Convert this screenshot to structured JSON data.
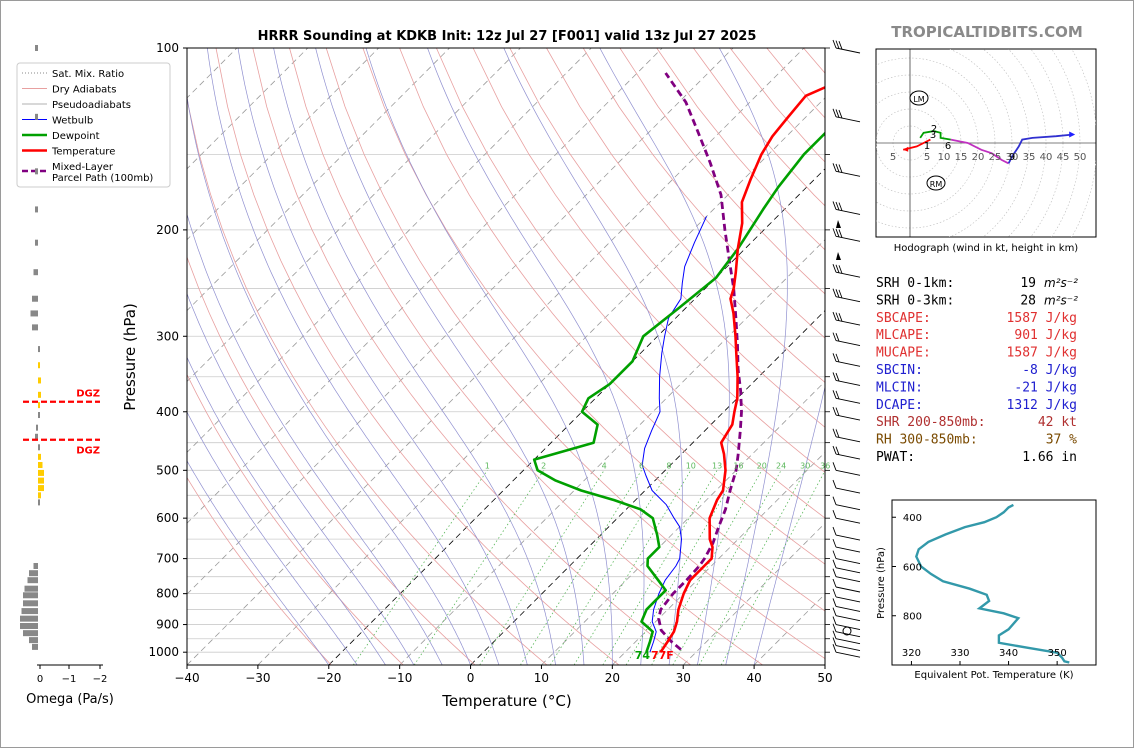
{
  "colors": {
    "temperature": "#ff0000",
    "dewpoint": "#00a000",
    "wetbulb": "#0000ff",
    "parcel": "#800080",
    "dry_adiabat": "#e8a0a0",
    "pseudoadiabat": "#b0b0b0",
    "mixing_ratio": "#5cb85c",
    "hodo_0_1": "#ff0000",
    "hodo_1_3": "#00a000",
    "hodo_3_6": "#c030c0",
    "hodo_6_9": "#3030d0",
    "hodo_9_plus": "#2020ff",
    "theta_e": "#3399aa",
    "omega_up": "#888888",
    "omega_down": "#ffcc00",
    "dgz": "#ff0000",
    "red_text": "#e03030",
    "blue_text": "#2020d0",
    "brown_text": "#7a4a00",
    "dark_red_text": "#b03030"
  },
  "header": {
    "title": "HRRR Sounding at KDKB Init: 12z Jul 27 [F001] valid 13z Jul 27 2025",
    "watermark": "TROPICALTIDBITS.COM"
  },
  "legend": {
    "items": [
      {
        "label": "Sat. Mix. Ratio",
        "icon": "dotted-line"
      },
      {
        "label": "Dry Adiabats",
        "icon": "thin-red-line"
      },
      {
        "label": "Pseudoadiabats",
        "icon": "thin-gray-line"
      },
      {
        "label": "Wetbulb",
        "icon": "blue-line"
      },
      {
        "label": "Dewpoint",
        "icon": "green-line"
      },
      {
        "label": "Temperature",
        "icon": "red-line"
      },
      {
        "label": "Mixed-Layer",
        "label2": "Parcel Path (100mb)",
        "icon": "purple-dashed-line"
      }
    ]
  },
  "omega": {
    "xlabel": "Omega (Pa/s)",
    "ticks": [
      "0",
      "−1",
      "−2"
    ],
    "dgz_label": "DGZ"
  },
  "surface_labels": {
    "dewpoint": "74",
    "temperature": "77F"
  },
  "hodograph": {
    "caption": "Hodograph (wind in kt, height in km)",
    "rings": [
      "5",
      "5",
      "10",
      "15",
      "20",
      "25",
      "30",
      "35",
      "40",
      "45",
      "50"
    ],
    "lm": "LM",
    "rm": "RM",
    "height_labels": [
      "1",
      "2",
      "3",
      "6",
      "9"
    ]
  },
  "indices": [
    {
      "label": "SRH 0-1km:",
      "value": "19",
      "unit": "m²s⁻²",
      "color": "#000000"
    },
    {
      "label": "SRH 0-3km:",
      "value": "28",
      "unit": "m²s⁻²",
      "color": "#000000"
    },
    {
      "label": "SBCAPE:",
      "value": "1587 J/kg",
      "unit": "",
      "color": "#e03030"
    },
    {
      "label": "MLCAPE:",
      "value": "901 J/kg",
      "unit": "",
      "color": "#e03030"
    },
    {
      "label": "MUCAPE:",
      "value": "1587 J/kg",
      "unit": "",
      "color": "#e03030"
    },
    {
      "label": "SBCIN:",
      "value": "-8 J/kg",
      "unit": "",
      "color": "#2020d0"
    },
    {
      "label": "MLCIN:",
      "value": "-21 J/kg",
      "unit": "",
      "color": "#2020d0"
    },
    {
      "label": "DCAPE:",
      "value": "1312 J/kg",
      "unit": "",
      "color": "#2020d0"
    },
    {
      "label": "SHR 200-850mb:",
      "value": "42 kt",
      "unit": "",
      "color": "#b03030"
    },
    {
      "label": "RH 300-850mb:",
      "value": "37 %",
      "unit": "",
      "color": "#7a4a00"
    },
    {
      "label": "PWAT:",
      "value": "1.66 in",
      "unit": "",
      "color": "#000000"
    }
  ],
  "chart_data": [
    {
      "type": "line",
      "name": "skewt",
      "xlabel": "Temperature (°C)",
      "ylabel": "Pressure (hPa)",
      "xlim": [
        -40,
        50
      ],
      "ylim": [
        1050,
        100
      ],
      "y_scale": "log",
      "x_ticks": [
        -40,
        -30,
        -20,
        -10,
        0,
        10,
        20,
        30,
        40,
        50
      ],
      "x_tick_labels": [
        "−40",
        "−30",
        "−20",
        "−10",
        "0",
        "10",
        "20",
        "30",
        "40",
        "50"
      ],
      "y_ticks": [
        100,
        200,
        300,
        400,
        500,
        600,
        700,
        800,
        900,
        1000
      ],
      "mixing_ratio_labels": [
        "1",
        "2",
        "4",
        "6",
        "8",
        "10",
        "13",
        "16",
        "20",
        "24",
        "30",
        "36"
      ],
      "series": [
        {
          "key": "temperature",
          "points": [
            [
              25,
              1000
            ],
            [
              24.5,
              960
            ],
            [
              24,
              925
            ],
            [
              23,
              890
            ],
            [
              21.5,
              850
            ],
            [
              20,
              800
            ],
            [
              19,
              760
            ],
            [
              19,
              720
            ],
            [
              19,
              700
            ],
            [
              17.5,
              670
            ],
            [
              16,
              650
            ],
            [
              13,
              600
            ],
            [
              11.5,
              560
            ],
            [
              11,
              540
            ],
            [
              8.5,
              500
            ],
            [
              6,
              470
            ],
            [
              4,
              450
            ],
            [
              3,
              420
            ],
            [
              1.5,
              400
            ],
            [
              0,
              380
            ],
            [
              -3,
              350
            ],
            [
              -6.5,
              320
            ],
            [
              -9,
              300
            ],
            [
              -12.5,
              275
            ],
            [
              -15,
              260
            ],
            [
              -16,
              250
            ],
            [
              -18,
              235
            ],
            [
              -21,
              215
            ],
            [
              -24,
              195
            ],
            [
              -27,
              180
            ],
            [
              -29,
              165
            ],
            [
              -31,
              150
            ],
            [
              -32,
              140
            ],
            [
              -32.5,
              130
            ],
            [
              -33,
              120
            ],
            [
              -31,
              115
            ],
            [
              -29,
              110
            ],
            [
              -27,
              105
            ],
            [
              -25,
              100
            ]
          ]
        },
        {
          "key": "dewpoint",
          "points": [
            [
              23,
              1000
            ],
            [
              22,
              960
            ],
            [
              21,
              925
            ],
            [
              18,
              890
            ],
            [
              17,
              850
            ],
            [
              17,
              820
            ],
            [
              17,
              790
            ],
            [
              14.5,
              760
            ],
            [
              11,
              720
            ],
            [
              10,
              700
            ],
            [
              10,
              670
            ],
            [
              8,
              640
            ],
            [
              5,
              600
            ],
            [
              2,
              580
            ],
            [
              -3,
              560
            ],
            [
              -9,
              540
            ],
            [
              -14,
              520
            ],
            [
              -18,
              500
            ],
            [
              -20,
              480
            ],
            [
              -14,
              450
            ],
            [
              -16,
              420
            ],
            [
              -20,
              400
            ],
            [
              -21,
              380
            ],
            [
              -20,
              360
            ],
            [
              -20,
              330
            ],
            [
              -22,
              300
            ],
            [
              -21,
              270
            ],
            [
              -20,
              240
            ],
            [
              -21,
              215
            ],
            [
              -23,
              185
            ],
            [
              -24,
              170
            ],
            [
              -25,
              150
            ],
            [
              -25,
              135
            ],
            [
              -27,
              120
            ],
            [
              -28,
              110
            ],
            [
              -28,
              100
            ]
          ]
        },
        {
          "key": "wetbulb",
          "points": [
            [
              23.5,
              1000
            ],
            [
              22.5,
              960
            ],
            [
              21.5,
              925
            ],
            [
              19.5,
              890
            ],
            [
              18,
              850
            ],
            [
              16.5,
              800
            ],
            [
              15.5,
              760
            ],
            [
              15,
              720
            ],
            [
              14.5,
              700
            ],
            [
              12,
              650
            ],
            [
              10,
              620
            ],
            [
              8,
              600
            ],
            [
              5,
              570
            ],
            [
              1,
              540
            ],
            [
              -2,
              510
            ],
            [
              -4,
              490
            ],
            [
              -6,
              460
            ],
            [
              -7.5,
              430
            ],
            [
              -9,
              400
            ],
            [
              -11,
              380
            ],
            [
              -14,
              350
            ],
            [
              -17,
              320
            ],
            [
              -19,
              300
            ],
            [
              -21,
              280
            ],
            [
              -22,
              260
            ],
            [
              -24,
              245
            ],
            [
              -26,
              230
            ],
            [
              -28,
              210
            ],
            [
              -30,
              190
            ]
          ]
        },
        {
          "key": "parcel",
          "points": [
            [
              27.5,
              990
            ],
            [
              25,
              960
            ],
            [
              22,
              920
            ],
            [
              20,
              880
            ],
            [
              19,
              850
            ],
            [
              18.5,
              800
            ],
            [
              18.5,
              760
            ],
            [
              18.3,
              720
            ],
            [
              18,
              700
            ],
            [
              17,
              660
            ],
            [
              15.5,
              620
            ],
            [
              14,
              580
            ],
            [
              12,
              540
            ],
            [
              10,
              500
            ],
            [
              8,
              470
            ],
            [
              5,
              430
            ],
            [
              2.5,
              400
            ],
            [
              -0.5,
              370
            ],
            [
              -4,
              340
            ],
            [
              -7.5,
              310
            ],
            [
              -11.5,
              280
            ],
            [
              -16,
              250
            ],
            [
              -20.5,
              225
            ],
            [
              -25.5,
              200
            ],
            [
              -31,
              175
            ],
            [
              -37,
              155
            ],
            [
              -43,
              138
            ],
            [
              -49,
              123
            ],
            [
              -56,
              110
            ]
          ]
        }
      ]
    },
    {
      "type": "bar",
      "name": "omega",
      "xlabel": "Omega (Pa/s)",
      "xlim": [
        0.3,
        -2.3
      ],
      "bars": [
        [
          100,
          -0.1
        ],
        [
          130,
          -0.1
        ],
        [
          160,
          -0.1
        ],
        [
          185,
          -0.1
        ],
        [
          210,
          -0.1
        ],
        [
          235,
          -0.15
        ],
        [
          260,
          -0.2
        ],
        [
          275,
          -0.25
        ],
        [
          290,
          -0.2
        ],
        [
          315,
          0.0
        ],
        [
          335,
          0.05
        ],
        [
          355,
          0.1
        ],
        [
          375,
          0.1
        ],
        [
          390,
          0.05
        ],
        [
          405,
          0.0
        ],
        [
          425,
          -0.05
        ],
        [
          440,
          -0.1
        ],
        [
          458,
          0.0
        ],
        [
          475,
          0.1
        ],
        [
          490,
          0.15
        ],
        [
          505,
          0.2
        ],
        [
          520,
          0.2
        ],
        [
          535,
          0.2
        ],
        [
          550,
          0.1
        ],
        [
          565,
          0.0
        ],
        [
          720,
          -0.15
        ],
        [
          740,
          -0.3
        ],
        [
          760,
          -0.35
        ],
        [
          785,
          -0.45
        ],
        [
          805,
          -0.5
        ],
        [
          830,
          -0.5
        ],
        [
          855,
          -0.55
        ],
        [
          880,
          -0.6
        ],
        [
          905,
          -0.6
        ],
        [
          930,
          -0.5
        ],
        [
          955,
          -0.3
        ],
        [
          980,
          -0.2
        ]
      ],
      "dgz": [
        385,
        445
      ]
    },
    {
      "type": "line",
      "name": "hodograph",
      "xlim": [
        -10,
        55
      ],
      "ylim": [
        -30,
        30
      ],
      "series": [
        {
          "key": "hodo_0_1",
          "points": [
            [
              -2,
              -2
            ],
            [
              2,
              -1
            ],
            [
              4,
              0
            ],
            [
              6,
              1
            ]
          ]
        },
        {
          "key": "hodo_1_3",
          "points": [
            [
              3,
              1.5
            ],
            [
              4,
              3
            ],
            [
              7,
              3.5
            ],
            [
              9,
              3
            ],
            [
              9,
              1.5
            ],
            [
              12,
              1
            ]
          ]
        },
        {
          "key": "hodo_3_6",
          "points": [
            [
              12,
              1
            ],
            [
              17,
              0
            ],
            [
              21,
              -2
            ],
            [
              24,
              -3
            ],
            [
              27,
              -5
            ],
            [
              29,
              -6
            ]
          ]
        },
        {
          "key": "hodo_6_9",
          "points": [
            [
              29,
              -6
            ],
            [
              30,
              -4
            ],
            [
              32,
              -1
            ],
            [
              33,
              1
            ],
            [
              36,
              1.5
            ],
            [
              43,
              2
            ],
            [
              48,
              2.5
            ]
          ]
        }
      ]
    },
    {
      "type": "line",
      "name": "theta_e",
      "xlabel": "Equivalent Pot. Temperature (K)",
      "ylabel": "Pressure (hPa)",
      "xlim": [
        316,
        358
      ],
      "ylim": [
        1000,
        330
      ],
      "x_ticks": [
        320,
        330,
        340,
        350
      ],
      "y_ticks": [
        400,
        600,
        800
      ],
      "series": [
        {
          "key": "theta_e",
          "points": [
            [
              352.5,
              990
            ],
            [
              351.5,
              985
            ],
            [
              351,
              970
            ],
            [
              350,
              950
            ],
            [
              344,
              930
            ],
            [
              338,
              910
            ],
            [
              338,
              880
            ],
            [
              340,
              855
            ],
            [
              342,
              810
            ],
            [
              339,
              790
            ],
            [
              334,
              770
            ],
            [
              336,
              740
            ],
            [
              335.5,
              715
            ],
            [
              332,
              690
            ],
            [
              326.5,
              660
            ],
            [
              324,
              630
            ],
            [
              322,
              600
            ],
            [
              321,
              560
            ],
            [
              321.5,
              530
            ],
            [
              323.5,
              500
            ],
            [
              327,
              470
            ],
            [
              331,
              440
            ],
            [
              335,
              420
            ],
            [
              337.5,
              400
            ],
            [
              339,
              380
            ],
            [
              340,
              360
            ],
            [
              341,
              350
            ]
          ]
        }
      ]
    }
  ]
}
